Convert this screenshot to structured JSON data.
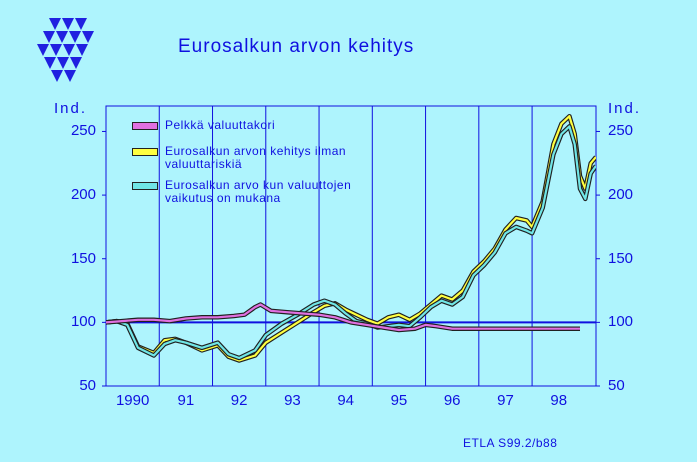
{
  "title": "Eurosalkun arvon kehitys",
  "y_unit_left": "Ind.",
  "y_unit_right": "Ind.",
  "source": "ETLA S99.2/b88",
  "colors": {
    "background": "#aef4fd",
    "text": "#1010e0",
    "grid": "#1010e0",
    "series1": "#e070e0",
    "series2": "#ffff40",
    "series3": "#70e6e6"
  },
  "chart_data": {
    "type": "line",
    "ylim": [
      50,
      270
    ],
    "yticks": [
      "50",
      "100",
      "150",
      "200",
      "250"
    ],
    "x_labels": [
      "1990",
      "91",
      "92",
      "93",
      "94",
      "95",
      "96",
      "97",
      "98"
    ],
    "xlim": [
      1990.0,
      1998.9
    ],
    "reference_line": 100,
    "grid": true,
    "legend_placement": "top-left",
    "series": [
      {
        "name": "Pelkkä valuuttakori",
        "color": "#e070e0",
        "points": [
          [
            1990.0,
            100
          ],
          [
            1990.3,
            101
          ],
          [
            1990.6,
            102
          ],
          [
            1990.9,
            102
          ],
          [
            1991.2,
            101
          ],
          [
            1991.5,
            103
          ],
          [
            1991.8,
            104
          ],
          [
            1992.1,
            104
          ],
          [
            1992.4,
            105
          ],
          [
            1992.6,
            106
          ],
          [
            1992.8,
            112
          ],
          [
            1992.9,
            114
          ],
          [
            1993.1,
            109
          ],
          [
            1993.4,
            108
          ],
          [
            1993.7,
            107
          ],
          [
            1994.0,
            106
          ],
          [
            1994.3,
            104
          ],
          [
            1994.6,
            100
          ],
          [
            1994.9,
            98
          ],
          [
            1995.2,
            96
          ],
          [
            1995.5,
            94
          ],
          [
            1995.8,
            95
          ],
          [
            1996.0,
            98
          ],
          [
            1996.2,
            97
          ],
          [
            1996.5,
            95
          ],
          [
            1996.8,
            95
          ],
          [
            1997.1,
            95
          ],
          [
            1997.4,
            95
          ],
          [
            1997.7,
            95
          ],
          [
            1998.0,
            95
          ],
          [
            1998.5,
            95
          ],
          [
            1998.9,
            95
          ]
        ]
      },
      {
        "name": "Eurosalkun arvon kehitys ilman valuuttariskiä",
        "color": "#ffff40",
        "points": [
          [
            1990.0,
            100
          ],
          [
            1990.2,
            101
          ],
          [
            1990.4,
            99
          ],
          [
            1990.6,
            81
          ],
          [
            1990.9,
            76
          ],
          [
            1991.1,
            86
          ],
          [
            1991.3,
            87
          ],
          [
            1991.5,
            84
          ],
          [
            1991.8,
            78
          ],
          [
            1992.1,
            82
          ],
          [
            1992.3,
            73
          ],
          [
            1992.5,
            70
          ],
          [
            1992.8,
            74
          ],
          [
            1993.0,
            84
          ],
          [
            1993.3,
            92
          ],
          [
            1993.6,
            100
          ],
          [
            1993.9,
            108
          ],
          [
            1994.1,
            113
          ],
          [
            1994.3,
            115
          ],
          [
            1994.5,
            110
          ],
          [
            1994.7,
            106
          ],
          [
            1994.9,
            102
          ],
          [
            1995.1,
            99
          ],
          [
            1995.3,
            104
          ],
          [
            1995.5,
            106
          ],
          [
            1995.7,
            102
          ],
          [
            1995.9,
            107
          ],
          [
            1996.1,
            114
          ],
          [
            1996.3,
            121
          ],
          [
            1996.5,
            118
          ],
          [
            1996.7,
            125
          ],
          [
            1996.9,
            140
          ],
          [
            1997.1,
            148
          ],
          [
            1997.3,
            158
          ],
          [
            1997.5,
            173
          ],
          [
            1997.7,
            182
          ],
          [
            1997.9,
            180
          ],
          [
            1998.0,
            175
          ],
          [
            1998.2,
            195
          ],
          [
            1998.4,
            240
          ],
          [
            1998.55,
            256
          ],
          [
            1998.7,
            262
          ],
          [
            1998.8,
            248
          ],
          [
            1998.9,
            215
          ],
          [
            1999.0,
            205
          ],
          [
            1999.1,
            225
          ],
          [
            1999.2,
            230
          ]
        ]
      },
      {
        "name": "Eurosalkun arvo kun valuuttojen vaikutus on mukana",
        "color": "#70e6e6",
        "points": [
          [
            1990.0,
            100
          ],
          [
            1990.2,
            101
          ],
          [
            1990.4,
            98
          ],
          [
            1990.6,
            80
          ],
          [
            1990.9,
            74
          ],
          [
            1991.1,
            83
          ],
          [
            1991.3,
            86
          ],
          [
            1991.5,
            84
          ],
          [
            1991.8,
            80
          ],
          [
            1992.1,
            84
          ],
          [
            1992.3,
            75
          ],
          [
            1992.5,
            72
          ],
          [
            1992.8,
            78
          ],
          [
            1993.0,
            90
          ],
          [
            1993.3,
            99
          ],
          [
            1993.6,
            106
          ],
          [
            1993.9,
            114
          ],
          [
            1994.1,
            117
          ],
          [
            1994.3,
            114
          ],
          [
            1994.5,
            107
          ],
          [
            1994.7,
            101
          ],
          [
            1994.9,
            99
          ],
          [
            1995.1,
            96
          ],
          [
            1995.3,
            97
          ],
          [
            1995.5,
            98
          ],
          [
            1995.7,
            97
          ],
          [
            1995.9,
            104
          ],
          [
            1996.1,
            112
          ],
          [
            1996.3,
            117
          ],
          [
            1996.5,
            114
          ],
          [
            1996.7,
            120
          ],
          [
            1996.9,
            137
          ],
          [
            1997.1,
            145
          ],
          [
            1997.3,
            155
          ],
          [
            1997.5,
            170
          ],
          [
            1997.7,
            175
          ],
          [
            1997.9,
            172
          ],
          [
            1998.0,
            170
          ],
          [
            1998.2,
            190
          ],
          [
            1998.4,
            232
          ],
          [
            1998.55,
            248
          ],
          [
            1998.7,
            254
          ],
          [
            1998.8,
            240
          ],
          [
            1998.9,
            205
          ],
          [
            1999.0,
            197
          ],
          [
            1999.1,
            217
          ],
          [
            1999.2,
            223
          ]
        ]
      }
    ]
  }
}
